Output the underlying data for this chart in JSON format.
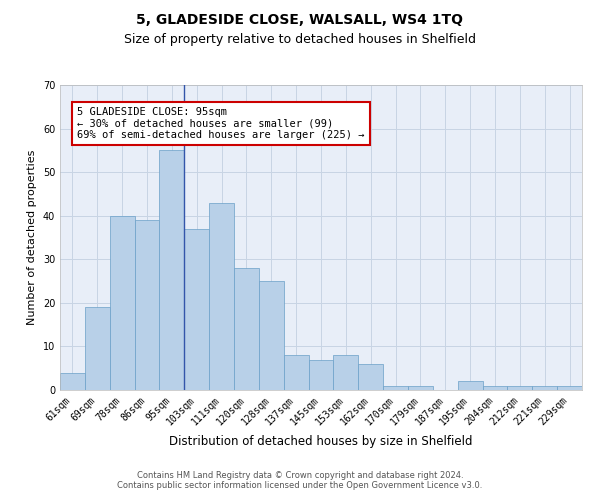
{
  "title1": "5, GLADESIDE CLOSE, WALSALL, WS4 1TQ",
  "title2": "Size of property relative to detached houses in Shelfield",
  "xlabel": "Distribution of detached houses by size in Shelfield",
  "ylabel": "Number of detached properties",
  "categories": [
    "61sqm",
    "69sqm",
    "78sqm",
    "86sqm",
    "95sqm",
    "103sqm",
    "111sqm",
    "120sqm",
    "128sqm",
    "137sqm",
    "145sqm",
    "153sqm",
    "162sqm",
    "170sqm",
    "179sqm",
    "187sqm",
    "195sqm",
    "204sqm",
    "212sqm",
    "221sqm",
    "229sqm"
  ],
  "values": [
    4,
    19,
    40,
    39,
    55,
    37,
    43,
    28,
    25,
    8,
    7,
    8,
    6,
    1,
    1,
    0,
    2,
    1,
    1,
    1,
    1
  ],
  "bar_color": "#b8d0e8",
  "bar_edge_color": "#6a9fc8",
  "highlight_index": 4,
  "highlight_line_color": "#3355aa",
  "annotation_text": "5 GLADESIDE CLOSE: 95sqm\n← 30% of detached houses are smaller (99)\n69% of semi-detached houses are larger (225) →",
  "annotation_box_color": "#ffffff",
  "annotation_box_edge": "#cc0000",
  "ylim": [
    0,
    70
  ],
  "yticks": [
    0,
    10,
    20,
    30,
    40,
    50,
    60,
    70
  ],
  "grid_color": "#c8d4e4",
  "bg_color": "#e8eef8",
  "footer1": "Contains HM Land Registry data © Crown copyright and database right 2024.",
  "footer2": "Contains public sector information licensed under the Open Government Licence v3.0.",
  "title1_fontsize": 10,
  "title2_fontsize": 9,
  "xlabel_fontsize": 8.5,
  "ylabel_fontsize": 8,
  "tick_fontsize": 7,
  "annotation_fontsize": 7.5,
  "footer_fontsize": 6
}
